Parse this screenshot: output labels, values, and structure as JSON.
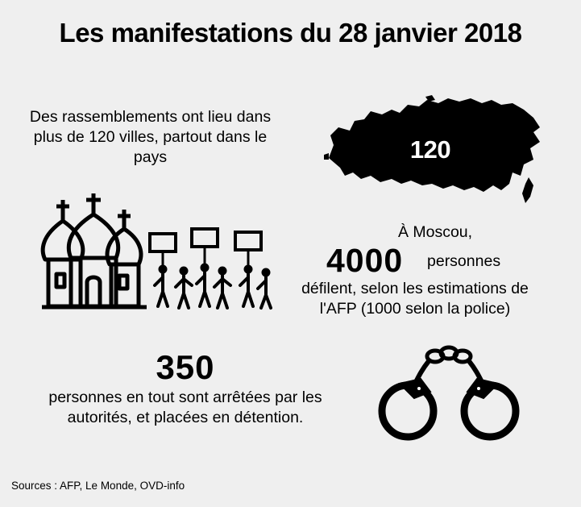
{
  "title": "Les manifestations du 28 janvier 2018",
  "section1": {
    "text": "Des rassemblements ont lieu dans plus de 120 villes, partout dans le pays",
    "map_number": "120",
    "icon": "russia-map-icon"
  },
  "section2": {
    "line1": "À Moscou,",
    "number": "4000",
    "unit": "personnes",
    "rest": "défilent, selon les estimations de l'AFP (1000 selon la police)",
    "icons": [
      "church-icon",
      "protesters-icon"
    ]
  },
  "section3": {
    "number": "350",
    "text": "personnes en tout sont arrêtées par les autorités, et placées en détention.",
    "icon": "handcuffs-icon"
  },
  "sources": "Sources : AFP, Le Monde, OVD-info",
  "colors": {
    "background": "#efefef",
    "ink": "#000000",
    "map_label": "#ffffff"
  }
}
